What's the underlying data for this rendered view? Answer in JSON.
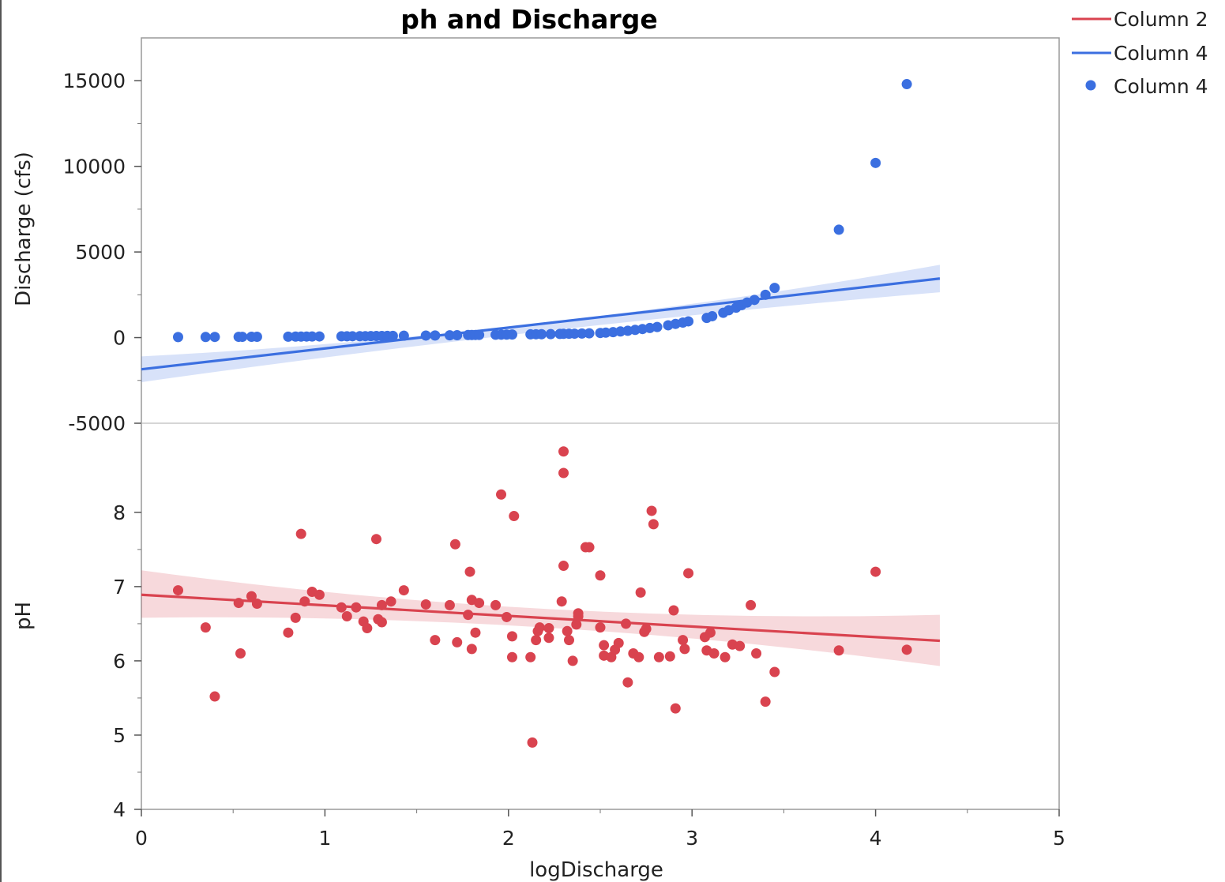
{
  "chart_data": {
    "type": "scatter",
    "title": "ph and Discharge",
    "xlabel": "logDischarge",
    "xlim": [
      0,
      5
    ],
    "xticks": [
      0,
      1,
      2,
      3,
      4,
      5
    ],
    "grid": false,
    "legend": {
      "position": "top-right",
      "entries": [
        {
          "label": "Column 2",
          "marker": "line",
          "color": "#d9434f"
        },
        {
          "label": "Column 4",
          "marker": "line",
          "color": "#3b6fe0"
        },
        {
          "label": "Column 4",
          "marker": "point",
          "color": "#3b6fe0"
        }
      ]
    },
    "panels": [
      {
        "ylabel": "Discharge (cfs)",
        "ylim": [
          -5000,
          17500
        ],
        "yticks": [
          -5000,
          0,
          5000,
          10000,
          15000
        ],
        "color": "#3b6fe0",
        "points": [
          [
            0.2,
            30
          ],
          [
            0.35,
            35
          ],
          [
            0.4,
            40
          ],
          [
            0.53,
            45
          ],
          [
            0.55,
            45
          ],
          [
            0.6,
            50
          ],
          [
            0.63,
            50
          ],
          [
            0.8,
            55
          ],
          [
            0.84,
            60
          ],
          [
            0.87,
            60
          ],
          [
            0.9,
            62
          ],
          [
            0.93,
            65
          ],
          [
            0.97,
            68
          ],
          [
            1.09,
            75
          ],
          [
            1.12,
            78
          ],
          [
            1.15,
            80
          ],
          [
            1.19,
            83
          ],
          [
            1.22,
            85
          ],
          [
            1.25,
            88
          ],
          [
            1.28,
            92
          ],
          [
            1.31,
            95
          ],
          [
            1.34,
            98
          ],
          [
            1.37,
            100
          ],
          [
            1.43,
            110
          ],
          [
            1.55,
            120
          ],
          [
            1.6,
            125
          ],
          [
            1.68,
            135
          ],
          [
            1.72,
            140
          ],
          [
            1.78,
            150
          ],
          [
            1.8,
            152
          ],
          [
            1.82,
            155
          ],
          [
            1.84,
            158
          ],
          [
            1.93,
            168
          ],
          [
            1.96,
            172
          ],
          [
            1.99,
            176
          ],
          [
            2.02,
            180
          ],
          [
            2.12,
            190
          ],
          [
            2.15,
            195
          ],
          [
            2.18,
            200
          ],
          [
            2.23,
            205
          ],
          [
            2.28,
            215
          ],
          [
            2.3,
            220
          ],
          [
            2.33,
            225
          ],
          [
            2.36,
            230
          ],
          [
            2.4,
            240
          ],
          [
            2.44,
            250
          ],
          [
            2.5,
            270
          ],
          [
            2.53,
            290
          ],
          [
            2.57,
            320
          ],
          [
            2.61,
            360
          ],
          [
            2.65,
            400
          ],
          [
            2.69,
            450
          ],
          [
            2.73,
            500
          ],
          [
            2.77,
            560
          ],
          [
            2.81,
            620
          ],
          [
            2.87,
            720
          ],
          [
            2.91,
            800
          ],
          [
            2.95,
            880
          ],
          [
            2.98,
            950
          ],
          [
            3.08,
            1150
          ],
          [
            3.11,
            1250
          ],
          [
            3.17,
            1450
          ],
          [
            3.2,
            1600
          ],
          [
            3.24,
            1750
          ],
          [
            3.27,
            1900
          ],
          [
            3.3,
            2050
          ],
          [
            3.34,
            2200
          ],
          [
            3.4,
            2500
          ],
          [
            3.45,
            2900
          ],
          [
            3.8,
            6300
          ],
          [
            4.0,
            10200
          ],
          [
            4.17,
            14800
          ]
        ],
        "fit": {
          "x": [
            0,
            4.35
          ],
          "y": [
            -1850,
            3450
          ]
        },
        "band_lower": [
          -2600,
          2650
        ],
        "band_upper": [
          -1100,
          4250
        ],
        "band_mid": {
          "x": 2.05,
          "lower": 200,
          "upper": 700
        }
      },
      {
        "ylabel": "pH",
        "ylim": [
          4,
          9.2
        ],
        "yticks": [
          4,
          5,
          6,
          7,
          8
        ],
        "color": "#d9434f",
        "points": [
          [
            0.2,
            6.95
          ],
          [
            0.35,
            6.45
          ],
          [
            0.4,
            5.52
          ],
          [
            0.53,
            6.78
          ],
          [
            0.54,
            6.1
          ],
          [
            0.6,
            6.87
          ],
          [
            0.63,
            6.77
          ],
          [
            0.8,
            6.38
          ],
          [
            0.84,
            6.58
          ],
          [
            0.87,
            7.71
          ],
          [
            0.89,
            6.8
          ],
          [
            0.93,
            6.93
          ],
          [
            0.97,
            6.89
          ],
          [
            1.09,
            6.72
          ],
          [
            1.12,
            6.6
          ],
          [
            1.17,
            6.72
          ],
          [
            1.21,
            6.53
          ],
          [
            1.23,
            6.44
          ],
          [
            1.28,
            7.64
          ],
          [
            1.29,
            6.56
          ],
          [
            1.31,
            6.52
          ],
          [
            1.31,
            6.75
          ],
          [
            1.36,
            6.8
          ],
          [
            1.43,
            6.95
          ],
          [
            1.55,
            6.76
          ],
          [
            1.6,
            6.28
          ],
          [
            1.68,
            6.75
          ],
          [
            1.71,
            7.57
          ],
          [
            1.72,
            6.25
          ],
          [
            1.78,
            6.62
          ],
          [
            1.79,
            7.2
          ],
          [
            1.8,
            6.16
          ],
          [
            1.8,
            6.82
          ],
          [
            1.82,
            6.38
          ],
          [
            1.84,
            6.78
          ],
          [
            1.93,
            6.75
          ],
          [
            1.96,
            8.24
          ],
          [
            1.99,
            6.59
          ],
          [
            2.02,
            6.33
          ],
          [
            2.02,
            6.05
          ],
          [
            2.03,
            7.95
          ],
          [
            2.12,
            6.05
          ],
          [
            2.13,
            4.9
          ],
          [
            2.15,
            6.28
          ],
          [
            2.16,
            6.4
          ],
          [
            2.17,
            6.45
          ],
          [
            2.22,
            6.31
          ],
          [
            2.22,
            6.44
          ],
          [
            2.29,
            6.8
          ],
          [
            2.3,
            7.28
          ],
          [
            2.3,
            8.53
          ],
          [
            2.3,
            8.82
          ],
          [
            2.32,
            6.4
          ],
          [
            2.33,
            6.28
          ],
          [
            2.35,
            6.0
          ],
          [
            2.37,
            6.49
          ],
          [
            2.38,
            6.64
          ],
          [
            2.38,
            6.6
          ],
          [
            2.42,
            7.53
          ],
          [
            2.44,
            7.53
          ],
          [
            2.5,
            7.15
          ],
          [
            2.5,
            6.45
          ],
          [
            2.52,
            6.21
          ],
          [
            2.52,
            6.07
          ],
          [
            2.56,
            6.05
          ],
          [
            2.58,
            6.15
          ],
          [
            2.6,
            6.24
          ],
          [
            2.64,
            6.5
          ],
          [
            2.65,
            5.71
          ],
          [
            2.68,
            6.1
          ],
          [
            2.71,
            6.05
          ],
          [
            2.72,
            6.92
          ],
          [
            2.74,
            6.39
          ],
          [
            2.75,
            6.43
          ],
          [
            2.78,
            8.02
          ],
          [
            2.79,
            7.84
          ],
          [
            2.82,
            6.05
          ],
          [
            2.88,
            6.06
          ],
          [
            2.9,
            6.68
          ],
          [
            2.91,
            5.36
          ],
          [
            2.95,
            6.28
          ],
          [
            2.96,
            6.16
          ],
          [
            2.98,
            7.18
          ],
          [
            3.07,
            6.32
          ],
          [
            3.08,
            6.14
          ],
          [
            3.1,
            6.38
          ],
          [
            3.12,
            6.1
          ],
          [
            3.18,
            6.05
          ],
          [
            3.22,
            6.22
          ],
          [
            3.26,
            6.2
          ],
          [
            3.32,
            6.75
          ],
          [
            3.35,
            6.1
          ],
          [
            3.4,
            5.45
          ],
          [
            3.45,
            5.85
          ],
          [
            3.8,
            6.14
          ],
          [
            4.0,
            7.2
          ],
          [
            4.17,
            6.15
          ]
        ],
        "fit": {
          "x": [
            0,
            4.35
          ],
          "y": [
            6.89,
            6.27
          ]
        },
        "band_lower": [
          6.58,
          5.93
        ],
        "band_upper": [
          7.22,
          6.62
        ],
        "band_mid": {
          "x": 2.2,
          "lower": 6.45,
          "upper": 6.7
        }
      }
    ]
  }
}
